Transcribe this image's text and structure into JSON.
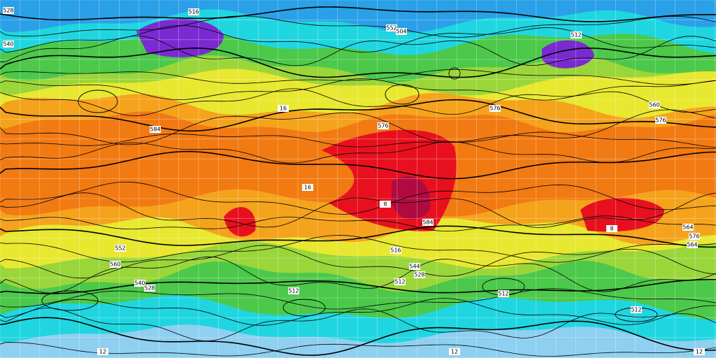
{
  "contour_labels": [
    "516",
    "528",
    "540",
    "552",
    "576",
    "504",
    "512",
    "576",
    "560",
    "564",
    "16",
    "584",
    "576",
    "16",
    "8",
    "8",
    "584",
    "516",
    "560",
    "552",
    "540",
    "528",
    "544",
    "528",
    "512",
    "512",
    "512",
    "512",
    "12",
    "12",
    "12",
    "564",
    "576"
  ]
}
